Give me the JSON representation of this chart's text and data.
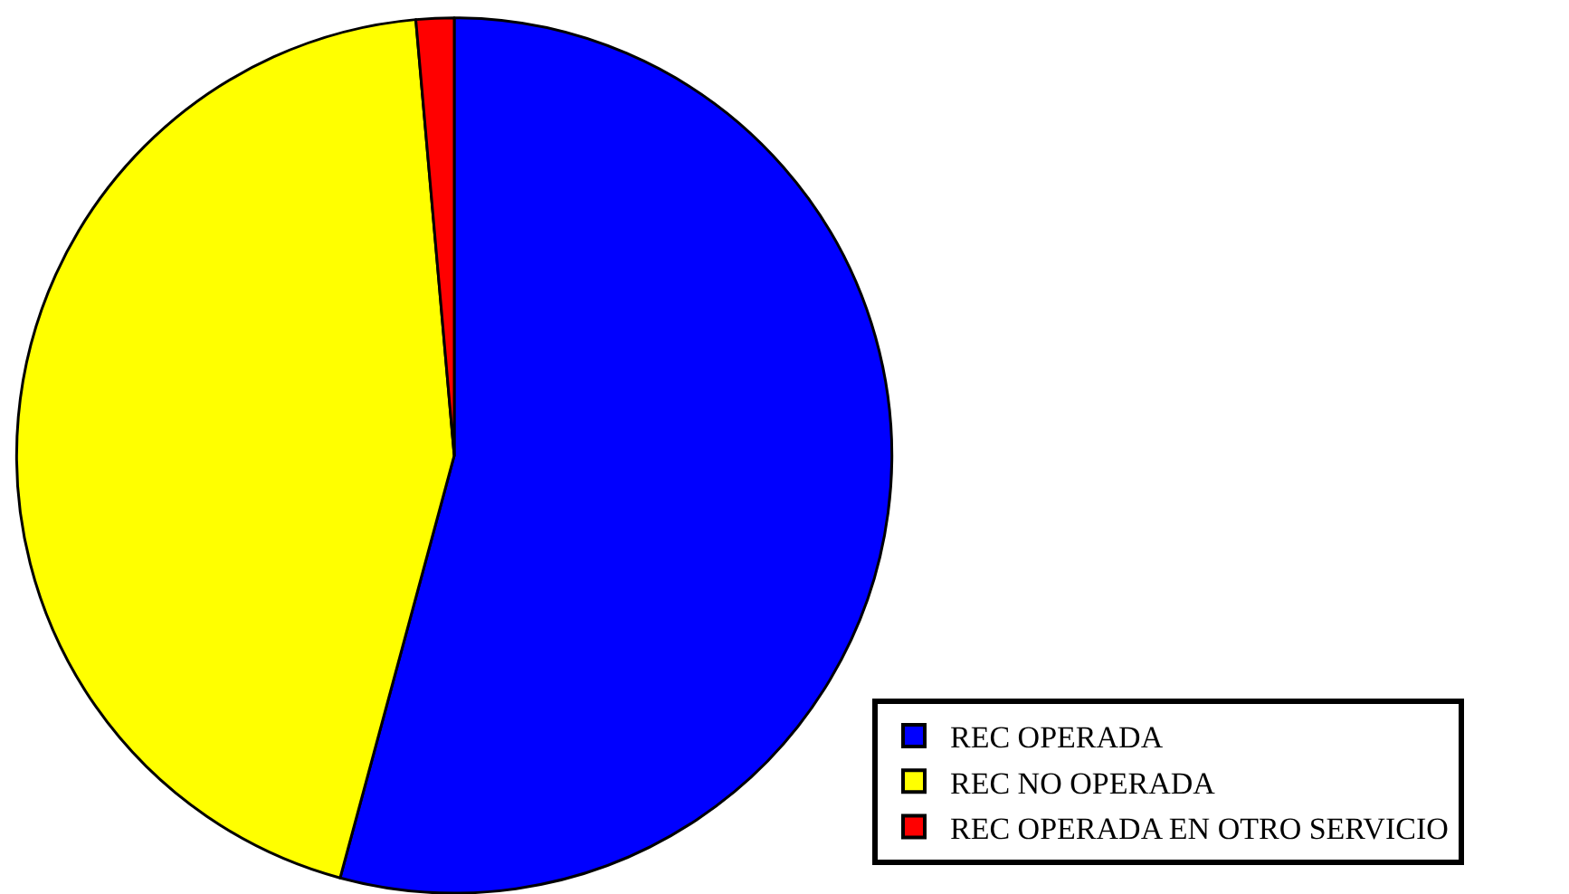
{
  "chart_data": {
    "type": "pie",
    "categories": [
      "REC OPERADA",
      "REC NO OPERADA",
      "REC OPERADA EN OTRO SERVICIO"
    ],
    "values": [
      54.2,
      44.4,
      1.4
    ],
    "colors": [
      "#0000ff",
      "#ffff00",
      "#ff0000"
    ],
    "legend": "bottom right"
  }
}
